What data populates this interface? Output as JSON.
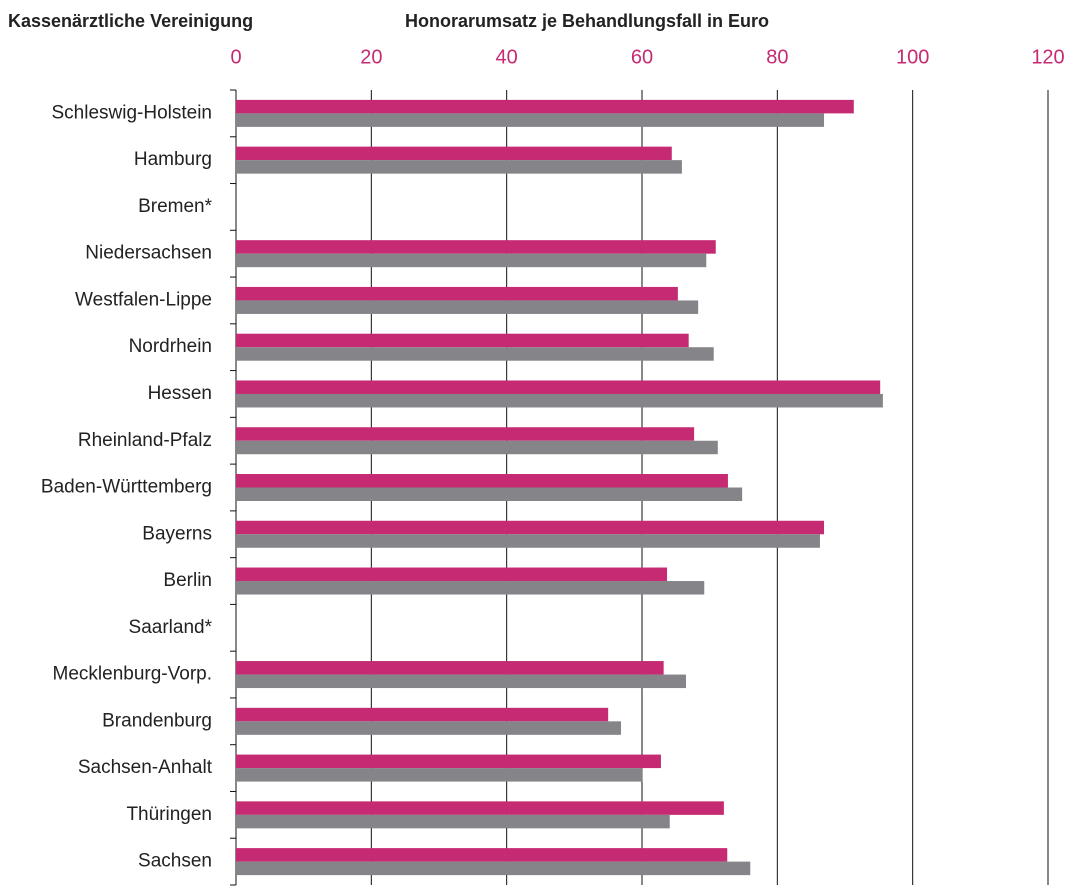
{
  "chart_data": {
    "type": "barh",
    "title": "Honorarumsatz je Behandlungsfall in Euro",
    "category_axis_label": "Kassenärztliche Vereinigung",
    "categories": [
      "Schleswig-Holstein",
      "Hamburg",
      "Bremen*",
      "Niedersachsen",
      "Westfalen-Lippe",
      "Nordrhein",
      "Hessen",
      "Rheinland-Pfalz",
      "Baden-Württemberg",
      "Bayerns",
      "Berlin",
      "Saarland*",
      "Mecklenburg-Vorp.",
      "Brandenburg",
      "Sachsen-Anhalt",
      "Thüringen",
      "Sachsen"
    ],
    "series": [
      {
        "color": "#c52a73",
        "values": [
          91.3,
          64.4,
          null,
          70.9,
          65.3,
          66.9,
          95.2,
          67.7,
          72.7,
          86.9,
          63.7,
          null,
          63.2,
          55.0,
          62.8,
          72.1,
          72.6
        ]
      },
      {
        "color": "#858489",
        "values": [
          86.9,
          65.9,
          null,
          69.5,
          68.3,
          70.6,
          95.6,
          71.2,
          74.8,
          86.3,
          69.2,
          null,
          66.5,
          56.9,
          60.1,
          64.1,
          76.0
        ]
      }
    ],
    "xlim": [
      0,
      120
    ],
    "xticks": [
      0,
      20,
      40,
      60,
      80,
      100,
      120
    ],
    "tick_color": "#c52a73",
    "grid": true
  }
}
